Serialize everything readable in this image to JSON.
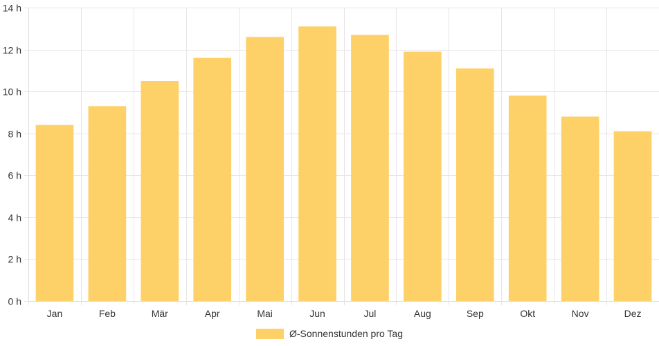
{
  "chart_data": {
    "type": "bar",
    "categories": [
      "Jan",
      "Feb",
      "Mär",
      "Apr",
      "Mai",
      "Jun",
      "Jul",
      "Aug",
      "Sep",
      "Okt",
      "Nov",
      "Dez"
    ],
    "series": [
      {
        "name": "Ø-Sonnenstunden pro Tag",
        "values": [
          8.4,
          9.3,
          10.5,
          11.6,
          12.6,
          13.1,
          12.7,
          11.9,
          11.1,
          9.8,
          8.8,
          8.1
        ],
        "color": "#fed068"
      }
    ],
    "y_ticks": [
      "0 h",
      "2 h",
      "4 h",
      "6 h",
      "8 h",
      "10 h",
      "12 h",
      "14 h"
    ],
    "ylim": [
      0,
      14
    ],
    "y_step": 2,
    "grid": true,
    "legend": "bottom-center"
  }
}
